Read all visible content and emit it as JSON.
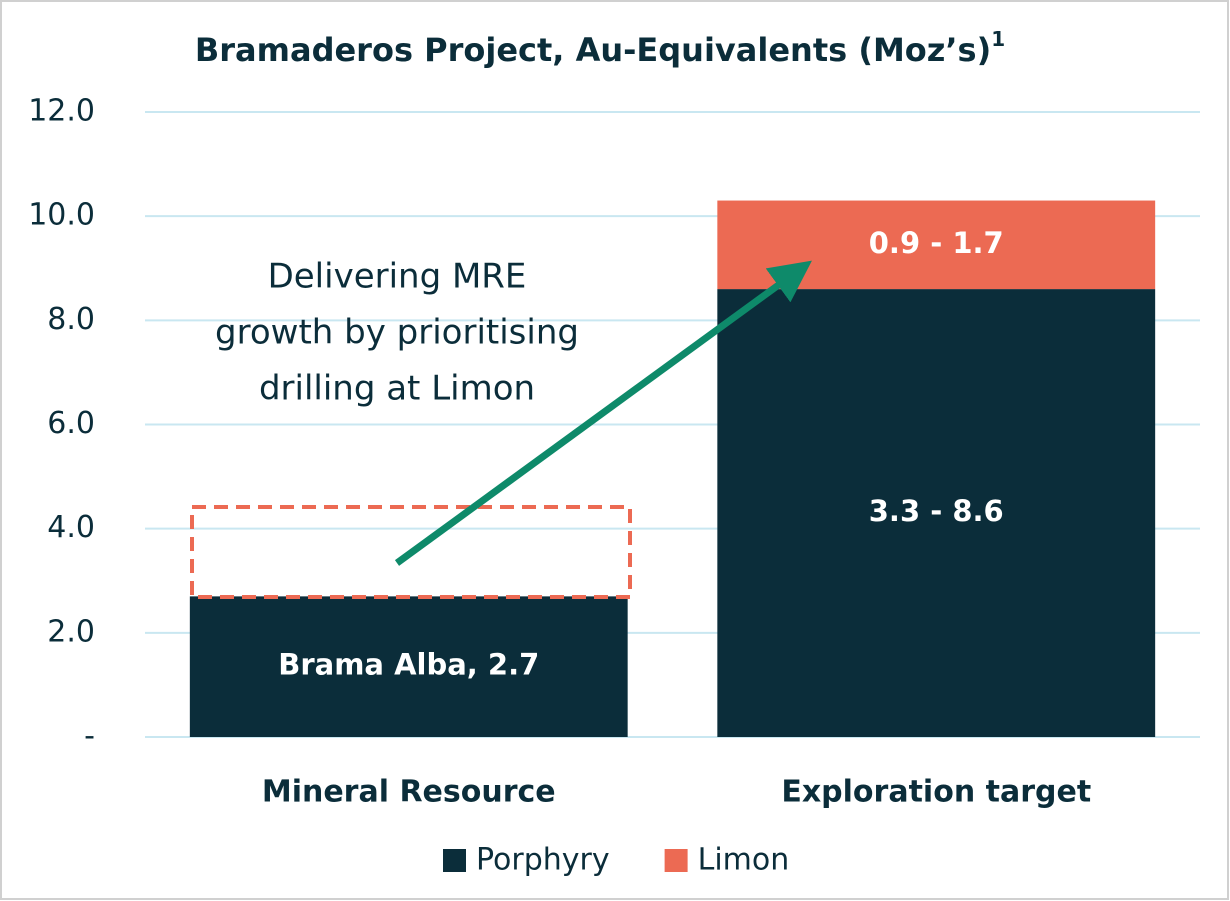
{
  "chart_data": {
    "type": "stacked_bar",
    "title": "Bramaderos Project, Au-Equivalents (Moz’s)",
    "title_superscript": "1",
    "categories": [
      "Mineral Resource",
      "Exploration target"
    ],
    "series": [
      {
        "name": "Porphyry",
        "color": "#0b2d3a",
        "values": [
          2.7,
          8.6
        ],
        "value_labels": [
          "Brama Alba, 2.7",
          "3.3 - 8.6"
        ]
      },
      {
        "name": "Limon",
        "color": "#ec6a53",
        "values": [
          null,
          1.7
        ],
        "value_labels": [
          null,
          "0.9 - 1.7"
        ]
      }
    ],
    "ylim": [
      0,
      12
    ],
    "yticks": [
      {
        "value": 0,
        "label": "-"
      },
      {
        "value": 2,
        "label": "2.0"
      },
      {
        "value": 4,
        "label": "4.0"
      },
      {
        "value": 6,
        "label": "6.0"
      },
      {
        "value": 8,
        "label": "8.0"
      },
      {
        "value": 10,
        "label": "10.0"
      },
      {
        "value": 12,
        "label": "12.0"
      }
    ],
    "grid": true,
    "legend": "bottom",
    "annotation": [
      "Delivering MRE",
      "growth by prioritising",
      "drilling at Limon"
    ]
  }
}
